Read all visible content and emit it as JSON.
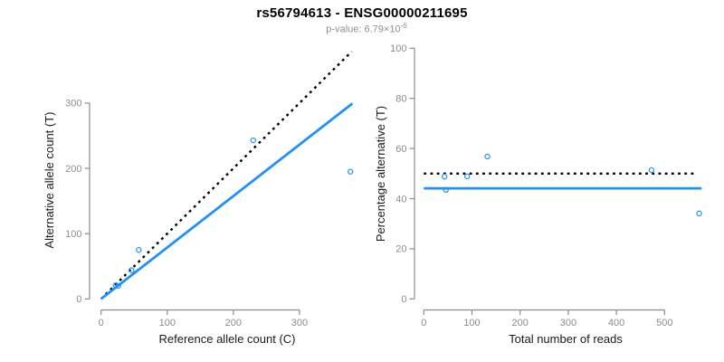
{
  "title": "rs56794613 - ENSG00000211695",
  "subtitle": {
    "text": "p-value: 6.79×10",
    "exponent": "-6"
  },
  "colors": {
    "point_and_fit_blue": "#1E90FF",
    "dotted_line_black": "#000000",
    "axis_gray": "#8c8c8c",
    "tick_label_gray": "#8c8c8c",
    "axis_title_color": "#1a1a1a",
    "subtitle_gray": "#8f8f8f",
    "background": "#ffffff"
  },
  "chart_data": [
    {
      "type": "scatter",
      "panel": "left",
      "xlabel": "Reference allele count (C)",
      "ylabel": "Alternative allele count (T)",
      "xticks": [
        0,
        100,
        200,
        300
      ],
      "yticks": [
        0,
        100,
        200,
        300
      ],
      "xlim": [
        0,
        380
      ],
      "ylim": [
        0,
        379
      ],
      "grid": false,
      "points": [
        {
          "x": 22,
          "y": 21
        },
        {
          "x": 26,
          "y": 20
        },
        {
          "x": 46,
          "y": 44
        },
        {
          "x": 57,
          "y": 75
        },
        {
          "x": 230,
          "y": 243
        },
        {
          "x": 377,
          "y": 195
        }
      ],
      "lines": [
        {
          "name": "expected-50-50-identity",
          "style": "dotted",
          "color": "#000000",
          "from": [
            0,
            0
          ],
          "to": [
            379,
            379
          ]
        },
        {
          "name": "fitted-allelic-ratio",
          "style": "solid",
          "color": "#1E90FF",
          "from": [
            0,
            0
          ],
          "to": [
            380,
            299.4
          ]
        }
      ]
    },
    {
      "type": "scatter",
      "panel": "right",
      "xlabel": "Total number of reads",
      "ylabel": "Percentage alternative (T)",
      "xticks": [
        0,
        100,
        200,
        300,
        400,
        500
      ],
      "yticks": [
        0,
        20,
        40,
        60,
        80,
        100
      ],
      "xlim": [
        0,
        590
      ],
      "ylim": [
        0,
        100
      ],
      "grid": false,
      "points": [
        {
          "x": 43,
          "y": 48.8
        },
        {
          "x": 46,
          "y": 43.5
        },
        {
          "x": 90,
          "y": 48.9
        },
        {
          "x": 132,
          "y": 56.8
        },
        {
          "x": 473,
          "y": 51.4
        },
        {
          "x": 572,
          "y": 34.1
        }
      ],
      "lines": [
        {
          "name": "expected-50-percent",
          "style": "dotted",
          "color": "#000000",
          "from": [
            0,
            50
          ],
          "to": [
            563,
            50
          ]
        },
        {
          "name": "mean-percent-alt",
          "style": "solid",
          "color": "#1E90FF",
          "from": [
            0,
            44.1
          ],
          "to": [
            577,
            44.1
          ]
        }
      ]
    }
  ]
}
